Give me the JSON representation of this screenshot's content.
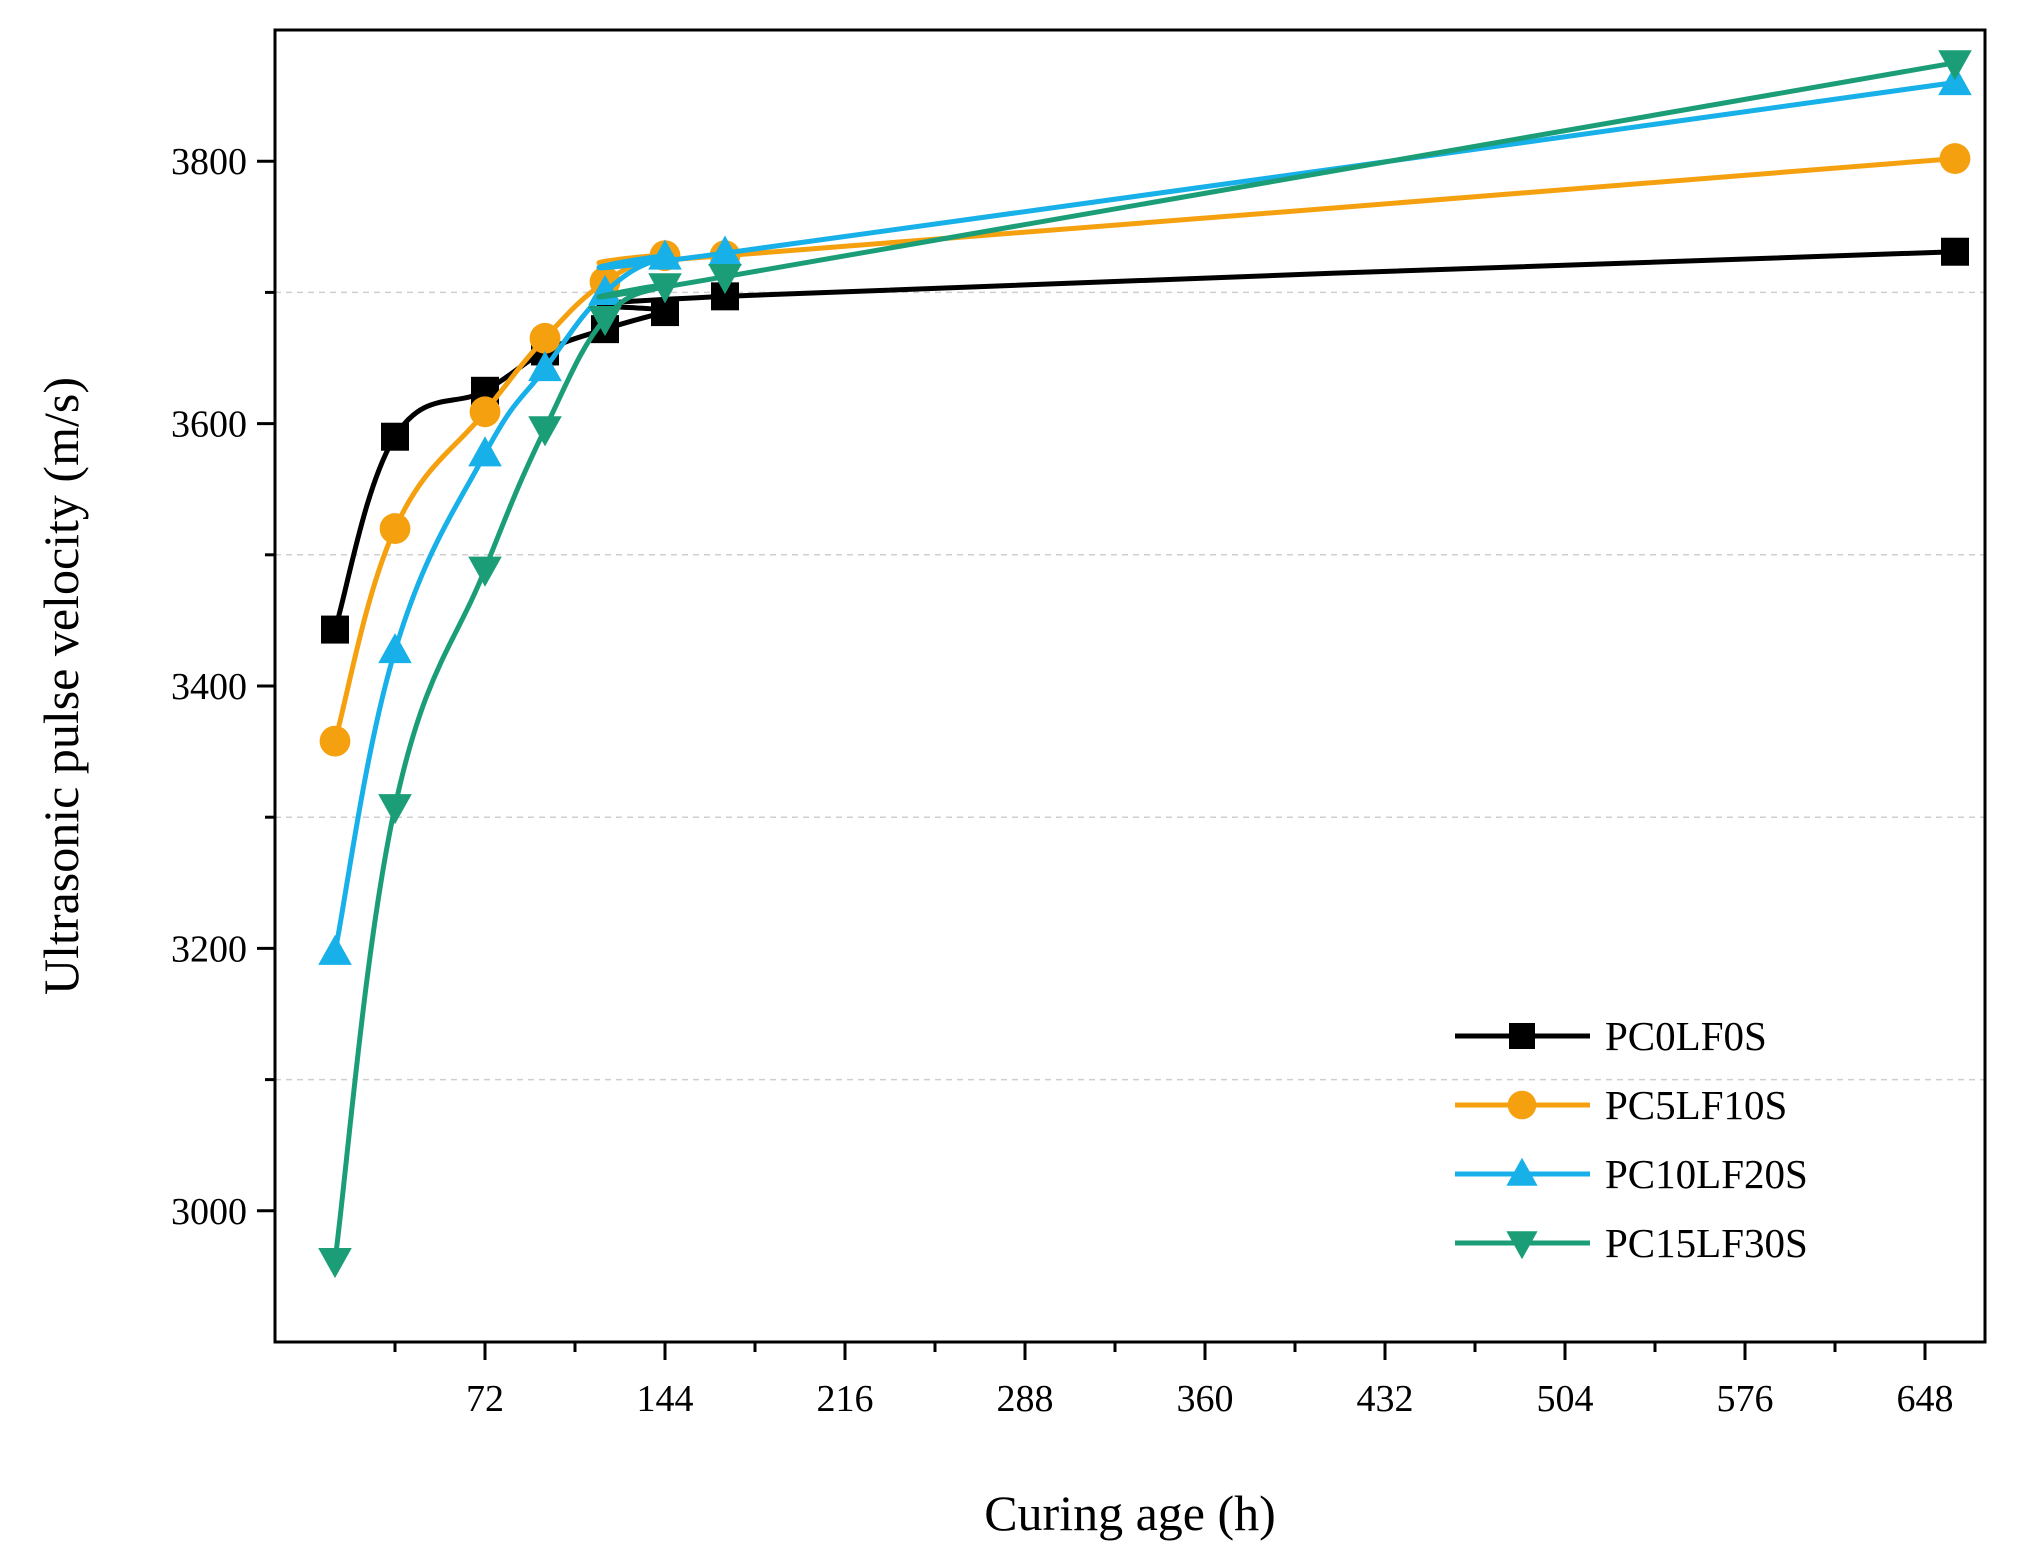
{
  "chart_data": {
    "type": "line",
    "title": "",
    "xlabel": "Curing age (h)",
    "ylabel": "Ultrasonic pulse velocity (m/s)",
    "xlim": [
      -12,
      672
    ],
    "ylim": [
      2900,
      3900
    ],
    "xticks": [
      72,
      144,
      216,
      288,
      360,
      432,
      504,
      576,
      648
    ],
    "xminor_step": 36,
    "yticks": [
      3000,
      3200,
      3400,
      3600,
      3800
    ],
    "yminor_step": 100,
    "grid_y": [
      3100,
      3300,
      3500,
      3700
    ],
    "legend_position": "bottom-right",
    "x": [
      12,
      36,
      72,
      96,
      120,
      144,
      168,
      660
    ],
    "series": [
      {
        "name": "PC0LF0S",
        "color": "#000000",
        "marker": "square",
        "values": [
          3443,
          3590,
          3625,
          3655,
          3672,
          3685,
          3697,
          3731
        ]
      },
      {
        "name": "PC5LF10S",
        "color": "#F5A00F",
        "marker": "circle",
        "values": [
          3358,
          3520,
          3609,
          3665,
          3708,
          3728,
          3728,
          3802
        ]
      },
      {
        "name": "PC10LF20S",
        "color": "#17B0E8",
        "marker": "triangle-up",
        "values": [
          3197,
          3427,
          3577,
          3642,
          3700,
          3727,
          3730,
          3860
        ]
      },
      {
        "name": "PC15LF30S",
        "color": "#1B9E77",
        "marker": "triangle-down",
        "values": [
          2962,
          3308,
          3489,
          3596,
          3680,
          3705,
          3712,
          3875
        ]
      }
    ]
  }
}
